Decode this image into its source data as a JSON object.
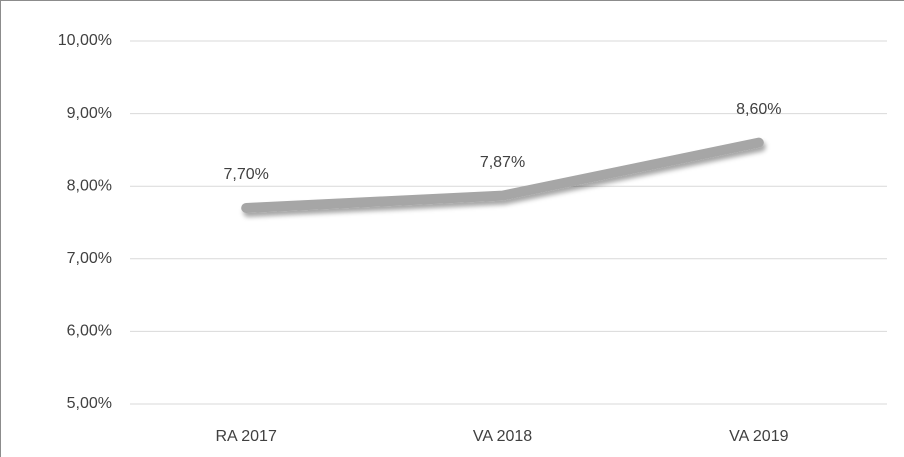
{
  "chart_data": {
    "type": "line",
    "categories": [
      "RA 2017",
      "VA 2018",
      "VA 2019"
    ],
    "values": [
      7.7,
      7.87,
      8.6
    ],
    "value_labels": [
      "7,70%",
      "7,87%",
      "8,60%"
    ],
    "color": "#a6a6a6",
    "ylim": [
      5,
      10
    ],
    "yticks": [
      {
        "value": 5,
        "label": "5,00%"
      },
      {
        "value": 6,
        "label": "6,00%"
      },
      {
        "value": 7,
        "label": "7,00%"
      },
      {
        "value": 8,
        "label": "8,00%"
      },
      {
        "value": 9,
        "label": "9,00%"
      },
      {
        "value": 10,
        "label": "10,00%"
      }
    ],
    "grid": true
  }
}
